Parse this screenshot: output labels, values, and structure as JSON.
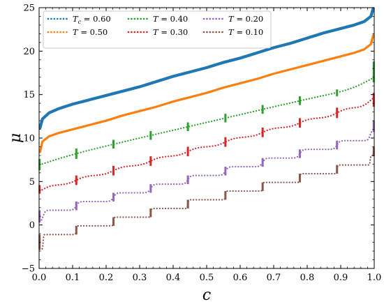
{
  "chart_data": {
    "type": "line",
    "title": "",
    "xlabel": "c",
    "ylabel": "μ",
    "xlim": [
      0.0,
      1.0
    ],
    "ylim": [
      -5,
      25
    ],
    "xticks": [
      "0.0",
      "0.1",
      "0.2",
      "0.3",
      "0.4",
      "0.5",
      "0.6",
      "0.7",
      "0.8",
      "0.9",
      "1.0"
    ],
    "yticks": [
      "−5",
      "0",
      "5",
      "10",
      "15",
      "20",
      "25"
    ],
    "legend_position": "top-left",
    "grid": false,
    "series": [
      {
        "name": "T_c = 0.60",
        "label_var": "T",
        "label_sub": "c",
        "label_value": "= 0.60",
        "color": "#1f77b4",
        "T": 0.6,
        "style": "solid",
        "x": [
          0.003,
          0.01,
          0.03,
          0.06,
          0.1,
          0.15,
          0.2,
          0.25,
          0.3,
          0.35,
          0.4,
          0.45,
          0.5,
          0.55,
          0.6,
          0.65,
          0.7,
          0.75,
          0.8,
          0.85,
          0.9,
          0.94,
          0.97,
          0.99,
          0.997
        ],
        "y": [
          11.2,
          12.2,
          12.9,
          13.4,
          13.9,
          14.4,
          14.9,
          15.4,
          15.9,
          16.5,
          17.1,
          17.6,
          18.1,
          18.7,
          19.2,
          19.8,
          20.4,
          20.9,
          21.5,
          22.1,
          22.6,
          23.0,
          23.4,
          24.0,
          24.9
        ]
      },
      {
        "name": "T = 0.50",
        "label_var": "T",
        "label_sub": "",
        "label_value": "= 0.50",
        "color": "#ff7f0e",
        "T": 0.5,
        "style": "dotted-steps",
        "x": [
          0.003,
          0.01,
          0.03,
          0.06,
          0.1,
          0.15,
          0.2,
          0.25,
          0.3,
          0.35,
          0.4,
          0.45,
          0.5,
          0.55,
          0.6,
          0.65,
          0.7,
          0.75,
          0.8,
          0.85,
          0.9,
          0.94,
          0.97,
          0.99,
          0.997
        ],
        "y": [
          8.4,
          9.6,
          10.2,
          10.6,
          11.0,
          11.5,
          12.0,
          12.6,
          13.1,
          13.6,
          14.2,
          14.7,
          15.2,
          15.8,
          16.3,
          16.8,
          17.4,
          17.9,
          18.4,
          18.9,
          19.4,
          19.8,
          20.2,
          20.8,
          21.8
        ]
      },
      {
        "name": "T = 0.40",
        "label_var": "T",
        "label_sub": "",
        "label_value": "= 0.40",
        "color": "#2ca02c",
        "T": 0.4,
        "style": "dotted-steps",
        "plateaus": [
          7.6,
          8.8,
          9.8,
          10.8,
          11.8,
          12.8,
          13.8,
          14.8,
          15.6,
          16.4
        ],
        "first": 6.3,
        "last": 18.8,
        "step": 0.04
      },
      {
        "name": "T = 0.30",
        "label_var": "T",
        "label_sub": "",
        "label_value": "= 0.30",
        "color": "#d62728",
        "T": 0.3,
        "style": "dotted-steps",
        "plateaus": [
          4.6,
          5.7,
          6.8,
          7.9,
          9.0,
          10.1,
          11.2,
          12.3,
          13.5,
          13.6
        ],
        "first": 3.6,
        "last": 15.2,
        "step": 0.015
      },
      {
        "name": "T = 0.20",
        "label_var": "T",
        "label_sub": "",
        "label_value": "= 0.20",
        "color": "#9467bd",
        "T": 0.2,
        "style": "dotted-steps",
        "plateaus": [
          1.7,
          2.7,
          3.7,
          4.7,
          5.7,
          6.7,
          7.7,
          8.7,
          9.7,
          10.7
        ],
        "first": 0.3,
        "last": 12.0,
        "step": 0.004
      },
      {
        "name": "T = 0.10",
        "label_var": "T",
        "label_sub": "",
        "label_value": "= 0.10",
        "color": "#8c564b",
        "T": 0.1,
        "style": "dotted-steps",
        "plateaus": [
          -1.1,
          -0.1,
          0.9,
          1.9,
          2.9,
          3.9,
          4.9,
          5.9,
          6.9,
          7.9
        ],
        "first": -2.8,
        "last": 9.0,
        "step": 0.001
      }
    ]
  }
}
